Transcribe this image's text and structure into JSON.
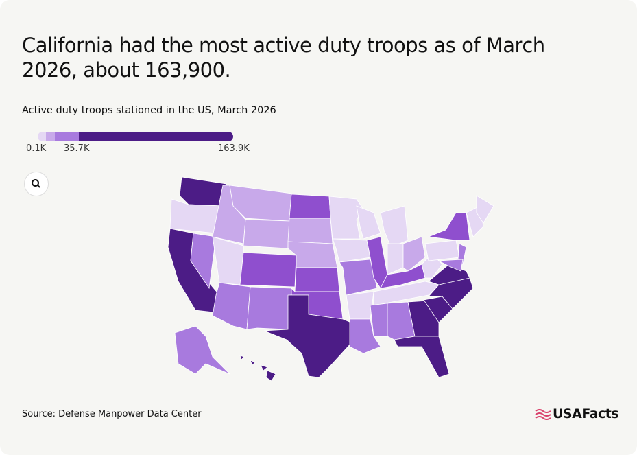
{
  "header": {
    "title": "California had the most active duty troops as of March 2026, about 163,900.",
    "subtitle": "Active duty troops stationed in the US, March 2026"
  },
  "legend": {
    "labels": [
      "0.1K",
      "35.7K",
      "163.9K"
    ]
  },
  "footer": {
    "source": "Source: Defense Manpower Data Center",
    "logo": "USAFacts"
  }
}
